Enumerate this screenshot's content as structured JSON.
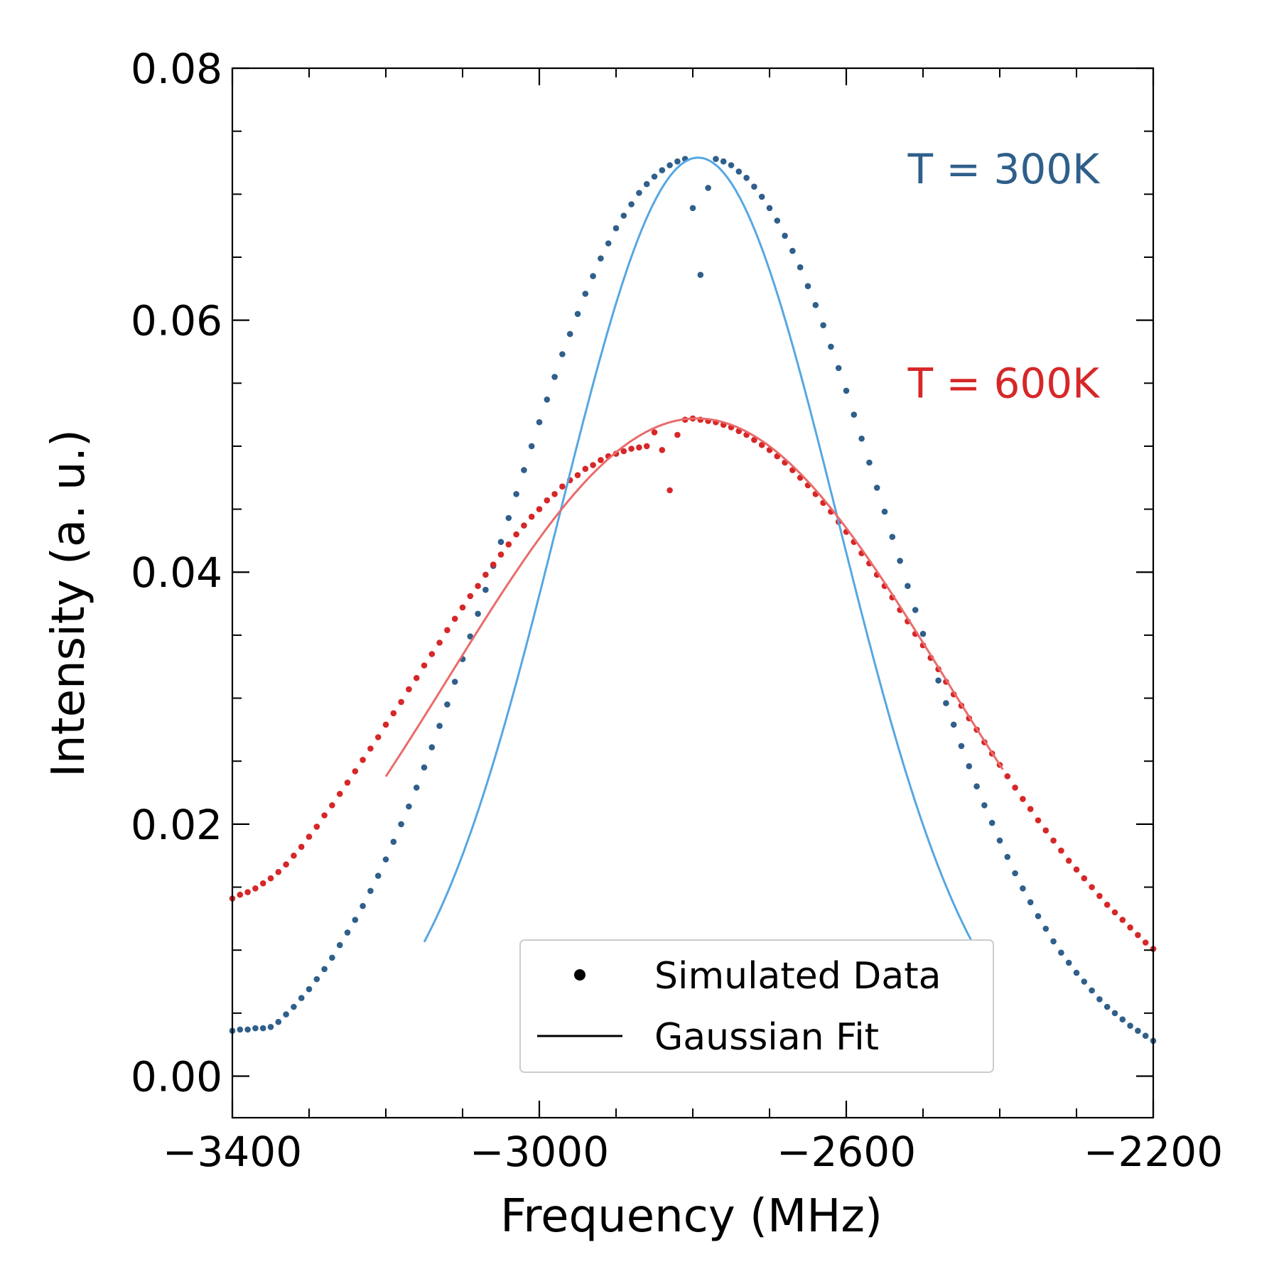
{
  "chart_data": {
    "type": "scatter",
    "title": "",
    "xlabel": "Frequency (MHz)",
    "ylabel": "Intensity (a. u.)",
    "xlim": [
      -3400,
      -2200
    ],
    "ylim": [
      -0.0033,
      0.08
    ],
    "x_major_ticks": [
      -3400,
      -3000,
      -2600,
      -2200
    ],
    "x_major_tick_labels": [
      "−3400",
      "−3000",
      "−2600",
      "−2200"
    ],
    "x_minor_step": 100,
    "y_major_ticks": [
      0.0,
      0.02,
      0.04,
      0.06,
      0.08
    ],
    "y_major_tick_labels": [
      "0.00",
      "0.02",
      "0.04",
      "0.06",
      "0.08"
    ],
    "y_minor_step": 0.005,
    "grid": false,
    "legend": {
      "position": "lower-right",
      "entries": [
        {
          "label": "Simulated Data",
          "marker": "dot"
        },
        {
          "label": "Gaussian Fit",
          "marker": "line"
        }
      ]
    },
    "annotations": [
      {
        "text": "T = 300K",
        "color": "#2f5f8a",
        "x": -2395,
        "y": 0.072
      },
      {
        "text": "T = 600K",
        "color": "#d62728",
        "y": 0.055,
        "x": -2395
      }
    ],
    "series": [
      {
        "name": "T = 300K Simulated Data",
        "kind": "dots",
        "color": "#2f5f8a",
        "x_start": -3400,
        "x_step": 10,
        "values": [
          0.0036,
          0.0037,
          0.0037,
          0.0038,
          0.0038,
          0.0039,
          0.0043,
          0.0049,
          0.0055,
          0.0062,
          0.0069,
          0.0077,
          0.0085,
          0.0094,
          0.0104,
          0.0114,
          0.0124,
          0.0135,
          0.0147,
          0.0159,
          0.0172,
          0.0186,
          0.02,
          0.0214,
          0.0229,
          0.0245,
          0.0261,
          0.0278,
          0.0295,
          0.0313,
          0.0331,
          0.0349,
          0.0367,
          0.0386,
          0.0405,
          0.0424,
          0.0443,
          0.0462,
          0.0481,
          0.05,
          0.0519,
          0.0537,
          0.0555,
          0.0573,
          0.0589,
          0.0605,
          0.0621,
          0.0635,
          0.0649,
          0.0661,
          0.0673,
          0.0683,
          0.0692,
          0.0701,
          0.0708,
          0.0714,
          0.0719,
          0.0723,
          0.0726,
          0.0728,
          0.0689,
          0.0636,
          0.0705,
          0.0728,
          0.0726,
          0.0723,
          0.0718,
          0.0713,
          0.0706,
          0.0698,
          0.0689,
          0.0679,
          0.0667,
          0.0655,
          0.0642,
          0.0627,
          0.0612,
          0.0596,
          0.0579,
          0.0562,
          0.0544,
          0.0525,
          0.0506,
          0.0487,
          0.0467,
          0.0448,
          0.0428,
          0.0409,
          0.0389,
          0.037,
          0.0351,
          0.0332,
          0.0314,
          0.0296,
          0.0279,
          0.0262,
          0.0246,
          0.023,
          0.0215,
          0.0201,
          0.0187,
          0.0174,
          0.0161,
          0.0149,
          0.0138,
          0.0127,
          0.0117,
          0.0107,
          0.0098,
          0.009,
          0.0082,
          0.0075,
          0.0068,
          0.0061,
          0.0055,
          0.005,
          0.0045,
          0.004,
          0.0036,
          0.0032,
          0.0028
        ]
      },
      {
        "name": "T = 600K Simulated Data",
        "kind": "dots",
        "color": "#d62728",
        "x_start": -3400,
        "x_step": 10,
        "values": [
          0.0141,
          0.0144,
          0.0146,
          0.0149,
          0.0153,
          0.0157,
          0.0162,
          0.0168,
          0.0175,
          0.0182,
          0.019,
          0.0198,
          0.0207,
          0.0215,
          0.0224,
          0.0233,
          0.0242,
          0.0251,
          0.026,
          0.0269,
          0.0279,
          0.0288,
          0.0297,
          0.0307,
          0.0316,
          0.0326,
          0.0335,
          0.0344,
          0.0354,
          0.0363,
          0.0372,
          0.0381,
          0.0389,
          0.0398,
          0.0406,
          0.0414,
          0.0422,
          0.043,
          0.0437,
          0.0444,
          0.045,
          0.0457,
          0.0462,
          0.0468,
          0.0473,
          0.0477,
          0.0482,
          0.0485,
          0.0489,
          0.0492,
          0.0494,
          0.0496,
          0.0498,
          0.0499,
          0.05,
          0.0511,
          0.0497,
          0.0465,
          0.0509,
          0.0521,
          0.0522,
          0.0521,
          0.052,
          0.0519,
          0.0517,
          0.0515,
          0.0512,
          0.0509,
          0.0505,
          0.0501,
          0.0497,
          0.0492,
          0.0487,
          0.0481,
          0.0475,
          0.0469,
          0.0462,
          0.0455,
          0.0448,
          0.044,
          0.0432,
          0.0424,
          0.0415,
          0.0407,
          0.0398,
          0.0389,
          0.038,
          0.037,
          0.0361,
          0.0351,
          0.0342,
          0.0332,
          0.0323,
          0.0313,
          0.0303,
          0.0294,
          0.0284,
          0.0275,
          0.0265,
          0.0256,
          0.0247,
          0.0238,
          0.0229,
          0.022,
          0.0212,
          0.0203,
          0.0195,
          0.0187,
          0.0179,
          0.0171,
          0.0164,
          0.0157,
          0.015,
          0.0143,
          0.0136,
          0.013,
          0.0124,
          0.0118,
          0.0112,
          0.0106,
          0.0101
        ]
      },
      {
        "name": "T = 300K Gaussian Fit",
        "kind": "line",
        "color": "#56a7e2",
        "amplitude": 0.0729,
        "center": -2793,
        "sigma": 182,
        "x_range": [
          -3150,
          -2435
        ]
      },
      {
        "name": "T = 600K Gaussian Fit",
        "kind": "line",
        "color": "#ea6b6b",
        "amplitude": 0.0522,
        "center": -2795,
        "sigma": 323,
        "x_range": [
          -3200,
          -2395
        ]
      }
    ]
  }
}
